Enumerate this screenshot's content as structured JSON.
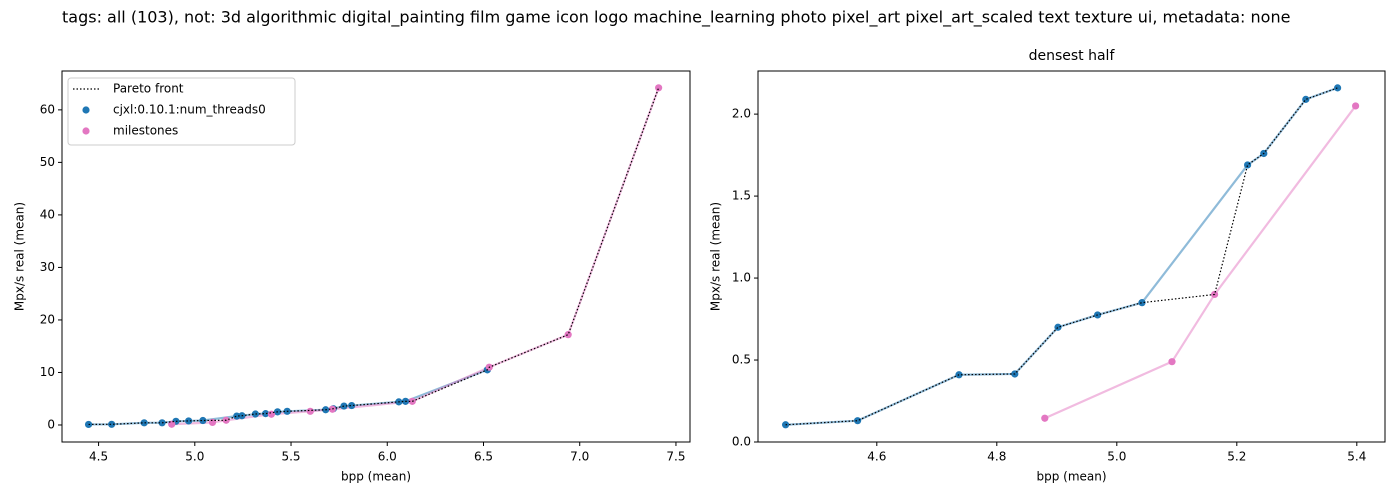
{
  "title": "tags: all (103), not: 3d algorithmic digital_painting film game icon logo machine_learning photo pixel_art pixel_art_scaled text texture ui, metadata: none",
  "chart_data": [
    {
      "type": "scatter",
      "xlabel": "bpp (mean)",
      "ylabel": "Mpx/s real (mean)",
      "legend": "upper left",
      "xlim": [
        4.31,
        7.573
      ],
      "ylim": [
        -3.24,
        67.4
      ],
      "xticks": [
        4.5,
        {
          "value": 5,
          "label": "5.0"
        },
        5.5,
        {
          "value": 6,
          "label": "6.0"
        },
        6.5,
        {
          "value": 7,
          "label": "7.0"
        },
        7.5
      ],
      "yticks": [
        0,
        10,
        20,
        30,
        40,
        50,
        60
      ],
      "series": [
        {
          "name": "Pareto front",
          "color": "#000000",
          "line": "dotted",
          "marker": false,
          "x": [
            4.448,
            4.568,
            4.737,
            4.83,
            4.902,
            4.968,
            5.042,
            5.163,
            5.218,
            5.245,
            5.315,
            5.368,
            5.43,
            5.48,
            5.68,
            5.72,
            5.775,
            5.815,
            6.06,
            6.095,
            6.13,
            6.52,
            6.53,
            6.94,
            7.41
          ],
          "values": [
            0.105,
            0.13,
            0.41,
            0.415,
            0.7,
            0.775,
            0.85,
            0.9,
            1.69,
            1.76,
            2.09,
            2.16,
            2.5,
            2.6,
            2.9,
            3.1,
            3.6,
            3.7,
            4.4,
            4.5,
            4.5,
            10.5,
            11,
            17.2,
            64.2
          ]
        },
        {
          "name": "cjxl:0.10.1:num_threads0",
          "color": "#1f77b4",
          "line": "solid",
          "marker": true,
          "x": [
            4.448,
            4.568,
            4.737,
            4.83,
            4.902,
            4.968,
            5.042,
            5.218,
            5.245,
            5.315,
            5.368,
            5.43,
            5.48,
            5.68,
            5.72,
            5.775,
            5.815,
            6.06,
            6.095,
            6.52
          ],
          "values": [
            0.105,
            0.13,
            0.41,
            0.415,
            0.7,
            0.775,
            0.85,
            1.69,
            1.76,
            2.09,
            2.16,
            2.5,
            2.6,
            2.9,
            3.1,
            3.6,
            3.7,
            4.4,
            4.5,
            10.5
          ]
        },
        {
          "name": "milestones",
          "color": "#e377c2",
          "line": "solid",
          "marker": true,
          "x": [
            4.88,
            5.092,
            5.163,
            5.398,
            5.6,
            5.715,
            6.13,
            6.53,
            6.94,
            7.41
          ],
          "values": [
            0.145,
            0.49,
            0.9,
            2.05,
            2.6,
            3.0,
            4.5,
            11,
            17.2,
            64.2
          ]
        }
      ]
    },
    {
      "type": "scatter",
      "title": "densest half",
      "xlabel": "bpp (mean)",
      "ylabel": "Mpx/s real (mean)",
      "xlim": [
        4.402,
        5.447
      ],
      "ylim": [
        0,
        2.263
      ],
      "xticks": [
        4.6,
        4.8,
        {
          "value": 5,
          "label": "5.0"
        },
        5.2,
        5.4
      ],
      "yticks": [
        {
          "value": 0,
          "label": "0.0"
        },
        0.5,
        {
          "value": 1,
          "label": "1.0"
        },
        1.5,
        {
          "value": 2,
          "label": "2.0"
        }
      ],
      "series": [
        {
          "color": "#000000",
          "line": "dotted",
          "marker": false,
          "x": [
            4.448,
            4.568,
            4.737,
            4.83,
            4.902,
            4.968,
            5.042,
            5.163,
            5.218,
            5.245,
            5.315,
            5.368
          ],
          "values": [
            0.105,
            0.13,
            0.41,
            0.415,
            0.7,
            0.775,
            0.85,
            0.9,
            1.69,
            1.76,
            2.09,
            2.16
          ]
        },
        {
          "color": "#1f77b4",
          "line": "solid",
          "marker": true,
          "x": [
            4.448,
            4.568,
            4.737,
            4.83,
            4.902,
            4.968,
            5.042,
            5.218,
            5.245,
            5.315,
            5.368
          ],
          "values": [
            0.105,
            0.13,
            0.41,
            0.415,
            0.7,
            0.775,
            0.85,
            1.69,
            1.76,
            2.09,
            2.16
          ]
        },
        {
          "color": "#e377c2",
          "line": "solid",
          "marker": true,
          "x": [
            4.88,
            5.092,
            5.163,
            5.398
          ],
          "values": [
            0.145,
            0.49,
            0.9,
            2.05
          ]
        }
      ]
    }
  ]
}
